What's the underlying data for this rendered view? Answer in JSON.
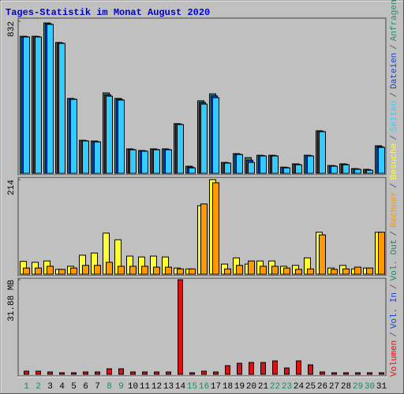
{
  "legend_separator": "/",
  "chart_data": [
    {
      "type": "bar",
      "title": "Tages-Statistik im Monat August 2020",
      "ylim": [
        0,
        832
      ],
      "yticks": [
        832
      ],
      "series": [
        {
          "name": "Anfragen",
          "color": "#2e8b6e",
          "values": [
            750,
            750,
            823,
            716,
            410,
            181,
            177,
            440,
            410,
            134,
            125,
            134,
            134,
            272,
            39,
            397,
            435,
            60,
            108,
            86,
            99,
            99,
            34,
            52,
            99,
            233,
            43,
            52,
            26,
            22,
            151
          ]
        },
        {
          "name": "Dateien",
          "color": "#1a3fd0",
          "values": [
            748,
            748,
            818,
            713,
            407,
            179,
            174,
            430,
            405,
            131,
            123,
            131,
            131,
            269,
            34,
            388,
            424,
            58,
            105,
            72,
            97,
            97,
            32,
            50,
            97,
            230,
            41,
            50,
            24,
            19,
            146
          ]
        },
        {
          "name": "Seiten",
          "color": "#33ccff",
          "values": [
            746,
            746,
            815,
            711,
            405,
            177,
            172,
            422,
            401,
            129,
            121,
            129,
            129,
            267,
            30,
            379,
            414,
            56,
            103,
            60,
            95,
            95,
            30,
            47,
            95,
            228,
            39,
            47,
            22,
            17,
            142
          ]
        }
      ]
    },
    {
      "type": "bar",
      "ylim": [
        0,
        214
      ],
      "yticks": [
        214
      ],
      "series": [
        {
          "name": "Besuche",
          "color": "#ffff33",
          "values": [
            29,
            27,
            30,
            11,
            18,
            43,
            48,
            93,
            78,
            41,
            39,
            41,
            39,
            14,
            12,
            155,
            214,
            23,
            37,
            23,
            30,
            30,
            18,
            20,
            37,
            95,
            14,
            20,
            12,
            14,
            95
          ]
        },
        {
          "name": "Rechner",
          "color": "#ff9900",
          "values": [
            14,
            14,
            18,
            11,
            14,
            20,
            20,
            27,
            18,
            18,
            18,
            16,
            16,
            12,
            12,
            159,
            207,
            12,
            20,
            30,
            18,
            18,
            14,
            11,
            12,
            89,
            11,
            12,
            16,
            14,
            95
          ]
        }
      ]
    },
    {
      "type": "bar",
      "ylim": [
        0,
        31.88
      ],
      "yticks": [
        {
          "value": 31.88,
          "label": "31.88 MB"
        }
      ],
      "categories": [
        "1",
        "2",
        "3",
        "4",
        "5",
        "6",
        "7",
        "8",
        "9",
        "10",
        "11",
        "12",
        "13",
        "14",
        "15",
        "16",
        "17",
        "18",
        "19",
        "20",
        "21",
        "22",
        "23",
        "24",
        "25",
        "26",
        "27",
        "28",
        "29",
        "30",
        "31"
      ],
      "category_colors": [
        "#1a8a5a",
        "#1a8a5a",
        "#000000",
        "#000000",
        "#000000",
        "#000000",
        "#000000",
        "#1a8a5a",
        "#1a8a5a",
        "#000000",
        "#000000",
        "#000000",
        "#000000",
        "#000000",
        "#1a8a5a",
        "#1a8a5a",
        "#000000",
        "#000000",
        "#000000",
        "#000000",
        "#000000",
        "#1a8a5a",
        "#1a8a5a",
        "#000000",
        "#000000",
        "#000000",
        "#000000",
        "#000000",
        "#1a8a5a",
        "#1a8a5a",
        "#000000"
      ],
      "series": [
        {
          "name": "Vol. Out",
          "color": "#1a8a5a",
          "values": [
            null,
            null,
            null,
            null,
            null,
            null,
            null,
            null,
            null,
            null,
            null,
            null,
            null,
            null,
            null,
            null,
            null,
            null,
            null,
            null,
            null,
            null,
            null,
            null,
            null,
            null,
            null,
            null,
            null,
            null,
            null
          ]
        },
        {
          "name": "Vol. In",
          "color": "#1a3fd0",
          "values": [
            null,
            null,
            null,
            null,
            null,
            null,
            null,
            null,
            null,
            null,
            null,
            null,
            null,
            null,
            null,
            null,
            null,
            null,
            null,
            null,
            null,
            null,
            null,
            null,
            null,
            null,
            null,
            null,
            null,
            null,
            null
          ]
        },
        {
          "name": "Volumen",
          "color": "#dd1111",
          "values": [
            1.06,
            1.06,
            0.8,
            0.53,
            0.53,
            0.8,
            0.8,
            1.86,
            1.86,
            0.8,
            0.8,
            0.8,
            0.8,
            31.88,
            0.53,
            1.06,
            0.8,
            2.92,
            3.72,
            3.98,
            3.98,
            4.52,
            2.13,
            4.52,
            3.19,
            0.8,
            0.53,
            0.53,
            0.53,
            0.53,
            0.53
          ]
        }
      ]
    }
  ]
}
